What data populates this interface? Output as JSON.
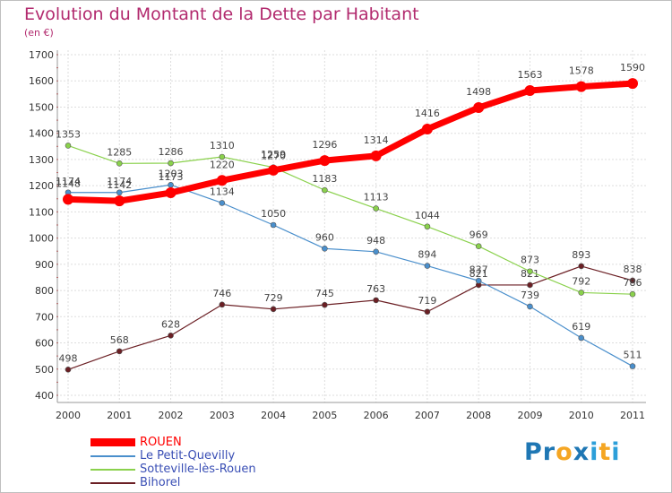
{
  "title": "Evolution du Montant de la Dette par Habitant",
  "subtitle": "(en €)",
  "logo": {
    "text": "Proxiti",
    "letters": [
      "P",
      "r",
      "o",
      "x",
      "i",
      "t",
      "i"
    ],
    "colors": [
      "#1f77b4",
      "#1f77b4",
      "#f5a623",
      "#1f77b4",
      "#2c9fd9",
      "#f5a623",
      "#2c9fd9"
    ]
  },
  "chart_data": {
    "type": "line",
    "title": "Evolution du Montant de la Dette par Habitant",
    "ylabel": "(en €)",
    "xlabel": "",
    "ylim": [
      400,
      1700
    ],
    "yticks": [
      400,
      500,
      600,
      700,
      800,
      900,
      1000,
      1100,
      1200,
      1300,
      1400,
      1500,
      1600,
      1700
    ],
    "grid": true,
    "legend_position": "bottom-left",
    "x": [
      "2000",
      "2001",
      "2002",
      "2003",
      "2004",
      "2005",
      "2006",
      "2007",
      "2008",
      "2009",
      "2010",
      "2011"
    ],
    "series": [
      {
        "name": "ROUEN",
        "color": "#ff0000",
        "values": [
          1148,
          1142,
          1173,
          1220,
          1259,
          1296,
          1314,
          1416,
          1498,
          1563,
          1578,
          1590
        ]
      },
      {
        "name": "Le Petit-Quevilly",
        "color": "#4a8fcc",
        "values": [
          1174,
          1174,
          1203,
          1134,
          1050,
          960,
          948,
          894,
          837,
          739,
          619,
          511
        ]
      },
      {
        "name": "Sotteville-lès-Rouen",
        "color": "#8ad14c",
        "values": [
          1353,
          1285,
          1286,
          1310,
          1270,
          1183,
          1113,
          1044,
          969,
          873,
          792,
          786
        ]
      },
      {
        "name": "Bihorel",
        "color": "#6b1f24",
        "values": [
          498,
          568,
          628,
          746,
          729,
          745,
          763,
          719,
          821,
          821,
          893,
          838
        ]
      }
    ]
  }
}
